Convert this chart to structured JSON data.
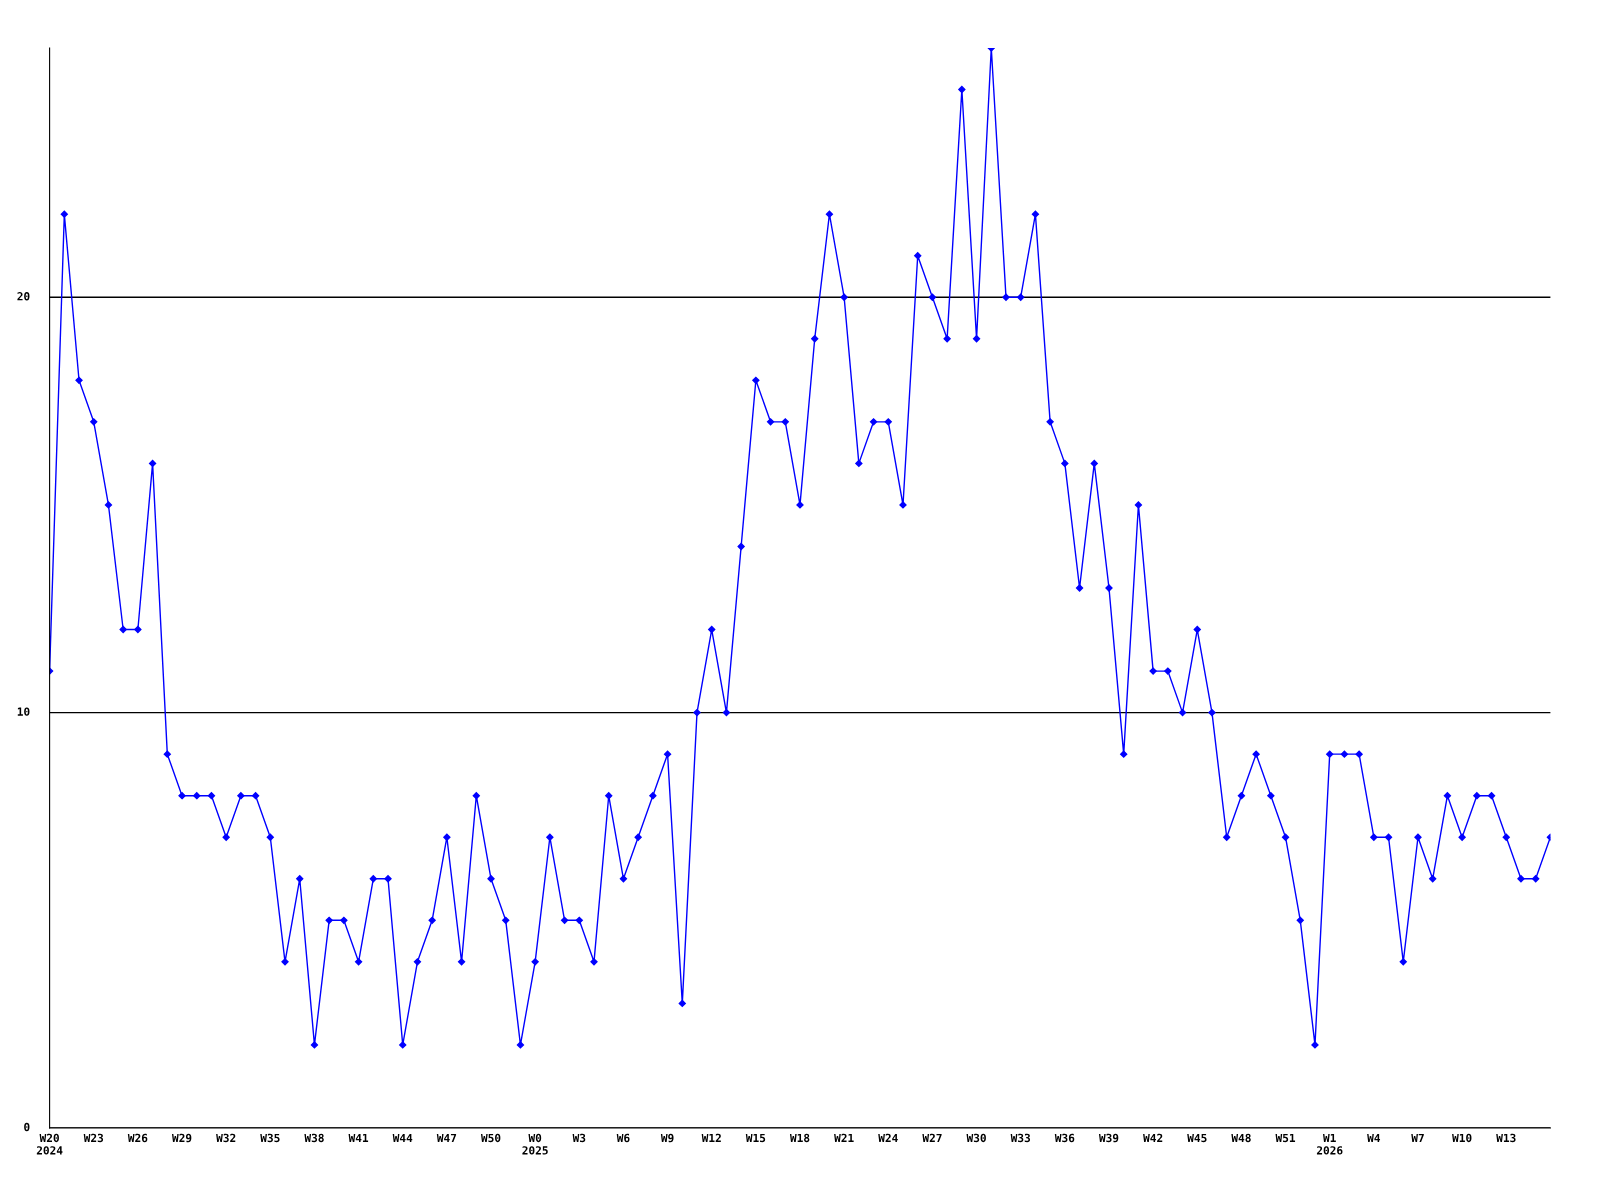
{
  "chart_data": {
    "type": "line",
    "categories": [
      "W20\n2024",
      null,
      null,
      "W23",
      null,
      null,
      "W26",
      null,
      null,
      "W29",
      null,
      null,
      "W32",
      null,
      null,
      "W35",
      null,
      null,
      "W38",
      null,
      null,
      "W41",
      null,
      null,
      "W44",
      null,
      null,
      "W47",
      null,
      null,
      "W50",
      null,
      null,
      "W0\n2025",
      null,
      null,
      "W3",
      null,
      null,
      "W6",
      null,
      null,
      "W9",
      null,
      null,
      "W12",
      null,
      null,
      "W15",
      null,
      null,
      "W18",
      null,
      null,
      "W21",
      null,
      null,
      "W24",
      null,
      null,
      "W27",
      null,
      null,
      "W30",
      null,
      null,
      "W33",
      null,
      null,
      "W36",
      null,
      null,
      "W39",
      null,
      null,
      "W42",
      null,
      null,
      "W45",
      null,
      null,
      "W48",
      null,
      null,
      "W51",
      null,
      null,
      "W1\n2026",
      null,
      null,
      "W4",
      null,
      null,
      "W7",
      null,
      null,
      "W10",
      null,
      null,
      "W13",
      null,
      null,
      null
    ],
    "series": [
      {
        "color": "#0000ff",
        "values": [
          11,
          22,
          18,
          17,
          15,
          12,
          12,
          16,
          9,
          8,
          8,
          8,
          7,
          8,
          8,
          7,
          4,
          6,
          2,
          5,
          5,
          4,
          6,
          6,
          2,
          4,
          5,
          7,
          4,
          8,
          6,
          5,
          2,
          4,
          7,
          5,
          5,
          4,
          8,
          6,
          7,
          8,
          9,
          3,
          10,
          12,
          10,
          14,
          18,
          17,
          17,
          15,
          19,
          22,
          20,
          16,
          17,
          17,
          15,
          21,
          20,
          19,
          25,
          19,
          26,
          20,
          20,
          22,
          17,
          16,
          13,
          16,
          13,
          9,
          15,
          11,
          11,
          10,
          12,
          10,
          7,
          8,
          9,
          8,
          7,
          5,
          2,
          9,
          9,
          9,
          7,
          7,
          4,
          7,
          6,
          8,
          7,
          8,
          8,
          7,
          6,
          6,
          7
        ]
      }
    ],
    "ylim": [
      0,
      26
    ],
    "yticks": [
      0,
      10,
      20
    ],
    "grid": "y",
    "marker": "diamond",
    "line_style": "solid"
  }
}
